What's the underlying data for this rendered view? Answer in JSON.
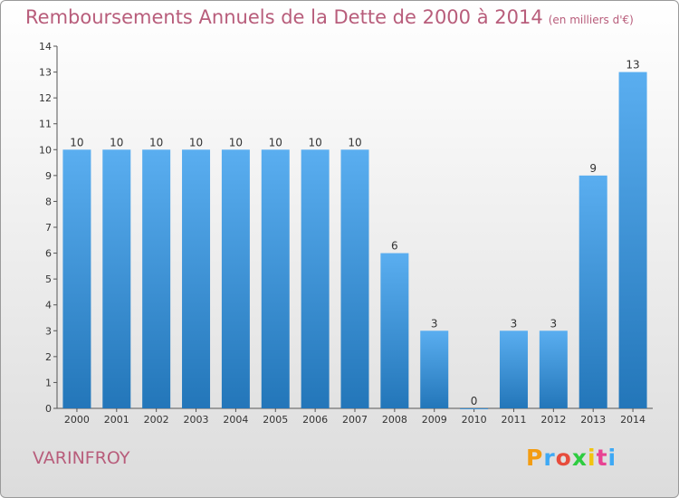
{
  "title": "Remboursements Annuels de la Dette de 2000 à 2014",
  "subtitle": "(en milliers d'€)",
  "commune": "VARINFROY",
  "logo": {
    "letters": [
      "P",
      "r",
      "o",
      "x",
      "i",
      "t",
      "i"
    ],
    "colors": [
      "#f39c12",
      "#3ea9f5",
      "#e74c3c",
      "#2ecc40",
      "#f1c40f",
      "#e84393",
      "#3ea9f5"
    ]
  },
  "colors": {
    "bar_light": "#5aaef0",
    "bar_dark": "#2376b9",
    "text": "#b85d7b",
    "axis": "#555555"
  },
  "chart_data": {
    "type": "bar",
    "title": "Remboursements Annuels de la Dette de 2000 à 2014",
    "subtitle": "(en milliers d'€)",
    "categories": [
      "2000",
      "2001",
      "2002",
      "2003",
      "2004",
      "2005",
      "2006",
      "2007",
      "2008",
      "2009",
      "2010",
      "2011",
      "2012",
      "2013",
      "2014"
    ],
    "values": [
      10,
      10,
      10,
      10,
      10,
      10,
      10,
      10,
      6,
      3,
      0,
      3,
      3,
      9,
      13
    ],
    "ylim": [
      0,
      14
    ],
    "yticks": [
      0,
      1,
      2,
      3,
      4,
      5,
      6,
      7,
      8,
      9,
      10,
      11,
      12,
      13,
      14
    ],
    "grid": false,
    "legend": "none"
  }
}
